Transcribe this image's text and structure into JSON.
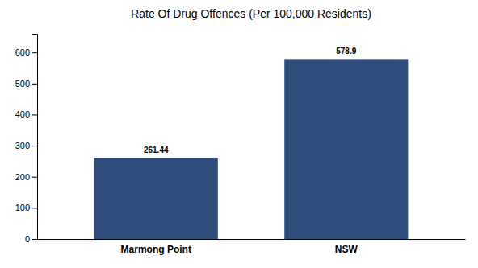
{
  "chart_data": {
    "type": "bar",
    "title": "Rate Of Drug Offences (Per 100,000 Residents)",
    "categories": [
      "Marmong Point",
      "NSW"
    ],
    "values": [
      261.44,
      578.9
    ],
    "color": "#2e4d7b",
    "ylim": [
      0,
      660
    ],
    "yticks": [
      0,
      100,
      200,
      300,
      400,
      500,
      600
    ],
    "grid": false,
    "data_labels": true
  }
}
